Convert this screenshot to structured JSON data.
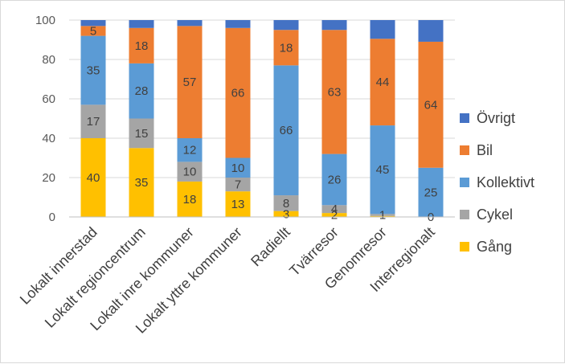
{
  "chart_data": {
    "type": "bar",
    "stacked": true,
    "categories": [
      "Lokalt innerstad",
      "Lokalt regioncentrum",
      "Lokalt inre kommuner",
      "Lokalt yttre kommuner",
      "Radiellt",
      "Tvärresor",
      "Genomresor",
      "Interregionalt"
    ],
    "series": [
      {
        "name": "Gång",
        "color": "#FFC000",
        "values": [
          40,
          35,
          18,
          13,
          3,
          2,
          0.5,
          0
        ],
        "labels": [
          "40",
          "35",
          "18",
          "13",
          "3",
          "2",
          "",
          ""
        ]
      },
      {
        "name": "Cykel",
        "color": "#A5A5A5",
        "values": [
          17,
          15,
          10,
          7,
          8,
          4,
          1,
          0
        ],
        "labels": [
          "17",
          "15",
          "10",
          "7",
          "8",
          "4",
          "1",
          "0"
        ]
      },
      {
        "name": "Kollektivt",
        "color": "#5B9BD5",
        "values": [
          35,
          28,
          12,
          10,
          66,
          26,
          45,
          25
        ],
        "labels": [
          "35",
          "28",
          "12",
          "10",
          "66",
          "26",
          "45",
          "25"
        ]
      },
      {
        "name": "Bil",
        "color": "#ED7D31",
        "values": [
          5,
          18,
          57,
          66,
          18,
          63,
          44,
          64
        ],
        "labels": [
          "5",
          "18",
          "57",
          "66",
          "18",
          "63",
          "44",
          "64"
        ]
      },
      {
        "name": "Övrigt",
        "color": "#4472C4",
        "values": [
          3,
          4,
          3,
          4,
          5,
          5,
          9.5,
          11
        ],
        "labels": [
          "",
          "",
          "",
          "",
          "",
          "",
          "",
          ""
        ]
      }
    ],
    "ylim": [
      0,
      100
    ],
    "yticks": [
      "0",
      "20",
      "40",
      "60",
      "80",
      "100"
    ],
    "grid": true,
    "legend_position": "right"
  }
}
